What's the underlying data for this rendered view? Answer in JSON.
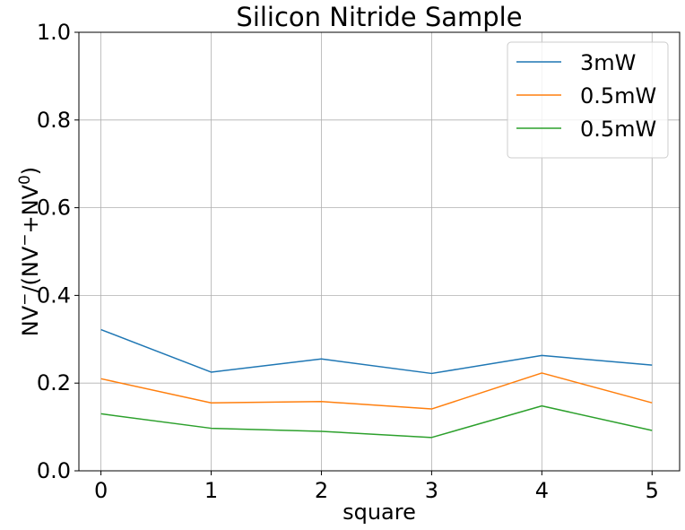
{
  "chart_data": {
    "type": "line",
    "title": "Silicon Nitride Sample",
    "xlabel": "square",
    "ylabel": {
      "parts": [
        {
          "text": "NV",
          "shift": "none"
        },
        {
          "text": "−",
          "shift": "super"
        },
        {
          "text": "/(NV",
          "shift": "none"
        },
        {
          "text": "−",
          "shift": "super"
        },
        {
          "text": "+NV",
          "shift": "none"
        },
        {
          "text": "0",
          "shift": "super"
        },
        {
          "text": ")",
          "shift": "none"
        }
      ]
    },
    "x": [
      0,
      1,
      2,
      3,
      4,
      5
    ],
    "xticks": [
      "0",
      "1",
      "2",
      "3",
      "4",
      "5"
    ],
    "yticks": [
      "0.0",
      "0.2",
      "0.4",
      "0.6",
      "0.8",
      "1.0"
    ],
    "xlim": [
      -0.2,
      5.25
    ],
    "ylim": [
      0,
      1
    ],
    "grid": true,
    "legend_position": "top-right",
    "series": [
      {
        "name": "3mW",
        "color": "#1f77b4",
        "values": [
          0.322,
          0.225,
          0.255,
          0.222,
          0.263,
          0.241
        ]
      },
      {
        "name": "0.5mW",
        "color": "#ff7f0e",
        "values": [
          0.21,
          0.155,
          0.158,
          0.141,
          0.223,
          0.155
        ]
      },
      {
        "name": "0.5mW",
        "color": "#2ca02c",
        "values": [
          0.13,
          0.097,
          0.09,
          0.076,
          0.148,
          0.092
        ]
      }
    ]
  }
}
